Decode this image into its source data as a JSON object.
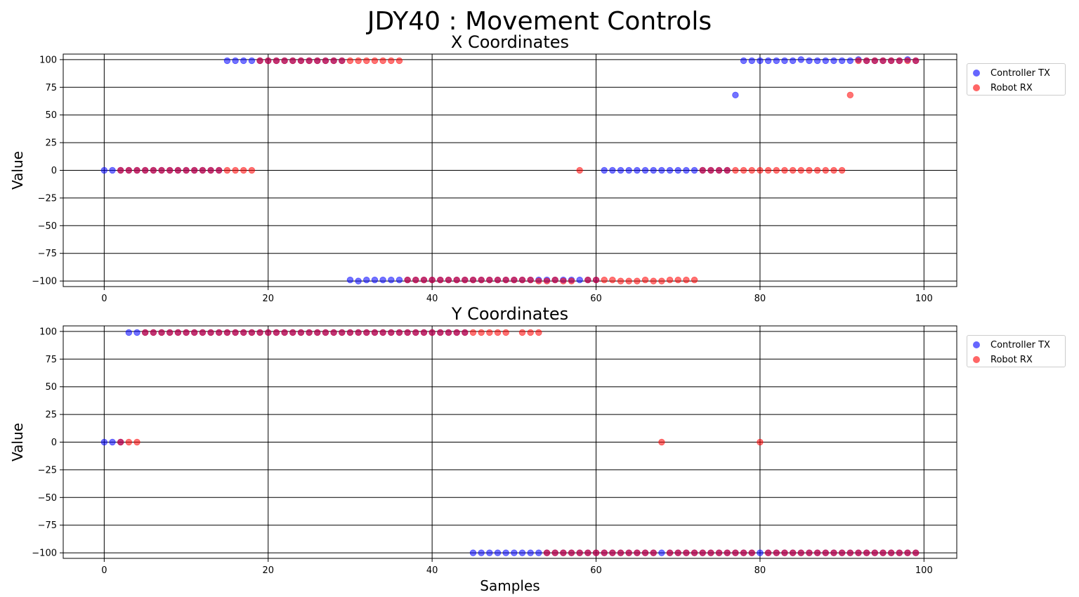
{
  "title": "JDY40 : Movement Controls",
  "colors": {
    "controller": "#0000ff",
    "robot": "#ff0000",
    "grid": "#000000"
  },
  "chart_data": [
    {
      "type": "scatter",
      "title": "X Coordinates",
      "xlabel": "",
      "ylabel": "Value",
      "xlim": [
        -5,
        104
      ],
      "ylim": [
        -105,
        105
      ],
      "xticks": [
        0,
        20,
        40,
        60,
        80,
        100
      ],
      "yticks": [
        100,
        75,
        50,
        25,
        0,
        -25,
        -50,
        -75,
        -100
      ],
      "grid": true,
      "legend": "outside-right-top",
      "series": [
        {
          "name": "Controller TX",
          "x": [
            0,
            1,
            2,
            3,
            4,
            5,
            6,
            7,
            8,
            9,
            10,
            11,
            12,
            13,
            14,
            15,
            16,
            17,
            18,
            19,
            20,
            21,
            22,
            23,
            24,
            25,
            26,
            27,
            28,
            29,
            30,
            31,
            32,
            33,
            34,
            35,
            36,
            37,
            38,
            39,
            40,
            41,
            42,
            43,
            44,
            45,
            46,
            47,
            48,
            49,
            50,
            51,
            52,
            53,
            54,
            55,
            56,
            57,
            58,
            59,
            60,
            61,
            62,
            63,
            64,
            65,
            66,
            67,
            68,
            69,
            70,
            71,
            72,
            73,
            74,
            75,
            76,
            77,
            78,
            79,
            80,
            81,
            82,
            83,
            84,
            85,
            86,
            87,
            88,
            89,
            90,
            91,
            92,
            93,
            94,
            95,
            96,
            97,
            98,
            99
          ],
          "y": [
            0,
            0,
            0,
            0,
            0,
            0,
            0,
            0,
            0,
            0,
            0,
            0,
            0,
            0,
            0,
            99,
            99,
            99,
            99,
            99,
            99,
            99,
            99,
            99,
            99,
            99,
            99,
            99,
            99,
            99,
            -99,
            -100,
            -99,
            -99,
            -99,
            -99,
            -99,
            -99,
            -99,
            -99,
            -99,
            -99,
            -99,
            -99,
            -99,
            -99,
            -99,
            -99,
            -99,
            -99,
            -99,
            -99,
            -99,
            -99,
            -99,
            -99,
            -99,
            -99,
            -99,
            -99,
            -99,
            0,
            0,
            0,
            0,
            0,
            0,
            0,
            0,
            0,
            0,
            0,
            0,
            0,
            0,
            0,
            0,
            68,
            99,
            99,
            99,
            99,
            99,
            99,
            99,
            100,
            99,
            99,
            99,
            99,
            99,
            99,
            100,
            99,
            99,
            99,
            99,
            99,
            100,
            99
          ]
        },
        {
          "name": "Robot RX",
          "x": [
            2,
            3,
            4,
            5,
            6,
            7,
            8,
            9,
            10,
            11,
            12,
            13,
            14,
            15,
            16,
            17,
            18,
            19,
            20,
            21,
            22,
            23,
            24,
            25,
            26,
            27,
            28,
            29,
            30,
            31,
            32,
            33,
            34,
            35,
            36,
            37,
            38,
            39,
            40,
            41,
            42,
            43,
            44,
            45,
            46,
            47,
            48,
            49,
            50,
            51,
            52,
            53,
            54,
            55,
            56,
            57,
            58,
            59,
            60,
            61,
            62,
            63,
            64,
            65,
            66,
            67,
            68,
            69,
            70,
            71,
            72,
            73,
            74,
            75,
            76,
            77,
            78,
            79,
            80,
            81,
            82,
            83,
            84,
            85,
            86,
            87,
            88,
            89,
            90,
            91,
            92,
            93,
            94,
            95,
            96,
            97,
            98,
            99
          ],
          "y": [
            0,
            0,
            0,
            0,
            0,
            0,
            0,
            0,
            0,
            0,
            0,
            0,
            0,
            0,
            0,
            0,
            0,
            99,
            99,
            99,
            99,
            99,
            99,
            99,
            99,
            99,
            99,
            99,
            99,
            99,
            99,
            99,
            99,
            99,
            99,
            -99,
            -99,
            -99,
            -99,
            -99,
            -99,
            -99,
            -99,
            -99,
            -99,
            -99,
            -99,
            -99,
            -99,
            -99,
            -99,
            -100,
            -100,
            -99,
            -100,
            -100,
            0,
            -99,
            -99,
            -99,
            -99,
            -100,
            -100,
            -100,
            -99,
            -100,
            -100,
            -99,
            -99,
            -99,
            -99,
            0,
            0,
            0,
            0,
            0,
            0,
            0,
            0,
            0,
            0,
            0,
            0,
            0,
            0,
            0,
            0,
            0,
            0,
            68,
            99,
            99,
            99,
            99,
            99,
            99,
            99,
            99
          ]
        }
      ]
    },
    {
      "type": "scatter",
      "title": "Y Coordinates",
      "xlabel": "Samples",
      "ylabel": "Value",
      "xlim": [
        -5,
        104
      ],
      "ylim": [
        -105,
        105
      ],
      "xticks": [
        0,
        20,
        40,
        60,
        80,
        100
      ],
      "yticks": [
        100,
        75,
        50,
        25,
        0,
        -25,
        -50,
        -75,
        -100
      ],
      "grid": true,
      "legend": "outside-right-top",
      "series": [
        {
          "name": "Controller TX",
          "x": [
            0,
            1,
            2,
            3,
            4,
            5,
            6,
            7,
            8,
            9,
            10,
            11,
            12,
            13,
            14,
            15,
            16,
            17,
            18,
            19,
            20,
            21,
            22,
            23,
            24,
            25,
            26,
            27,
            28,
            29,
            30,
            31,
            32,
            33,
            34,
            35,
            36,
            37,
            38,
            39,
            40,
            41,
            42,
            43,
            44,
            45,
            46,
            47,
            48,
            49,
            50,
            51,
            52,
            53,
            54,
            55,
            56,
            57,
            58,
            59,
            60,
            61,
            62,
            63,
            64,
            65,
            66,
            67,
            68,
            69,
            70,
            71,
            72,
            73,
            74,
            75,
            76,
            77,
            78,
            79,
            80,
            81,
            82,
            83,
            84,
            85,
            86,
            87,
            88,
            89,
            90,
            91,
            92,
            93,
            94,
            95,
            96,
            97,
            98,
            99
          ],
          "y": [
            0,
            0,
            0,
            99,
            99,
            99,
            99,
            99,
            99,
            99,
            99,
            99,
            99,
            99,
            99,
            99,
            99,
            99,
            99,
            99,
            99,
            99,
            99,
            99,
            99,
            99,
            99,
            99,
            99,
            99,
            99,
            99,
            99,
            99,
            99,
            99,
            99,
            99,
            99,
            99,
            99,
            99,
            99,
            99,
            99,
            -100,
            -100,
            -100,
            -100,
            -100,
            -100,
            -100,
            -100,
            -100,
            -100,
            -100,
            -100,
            -100,
            -100,
            -100,
            -100,
            -100,
            -100,
            -100,
            -100,
            -100,
            -100,
            -100,
            -100,
            -100,
            -100,
            -100,
            -100,
            -100,
            -100,
            -100,
            -100,
            -100,
            -100,
            -100,
            -100,
            -100,
            -100,
            -100,
            -100,
            -100,
            -100,
            -100,
            -100,
            -100,
            -100,
            -100,
            -100,
            -100,
            -100,
            -100,
            -100,
            -100,
            -100,
            -100
          ]
        },
        {
          "name": "Robot RX",
          "x": [
            2,
            3,
            4,
            5,
            6,
            7,
            8,
            9,
            10,
            11,
            12,
            13,
            14,
            15,
            16,
            17,
            18,
            19,
            20,
            21,
            22,
            23,
            24,
            25,
            26,
            27,
            28,
            29,
            30,
            31,
            32,
            33,
            34,
            35,
            36,
            37,
            38,
            39,
            40,
            41,
            42,
            43,
            44,
            45,
            46,
            47,
            48,
            49,
            51,
            52,
            53,
            54,
            55,
            56,
            57,
            58,
            59,
            60,
            61,
            62,
            63,
            64,
            65,
            66,
            67,
            68,
            69,
            70,
            71,
            72,
            73,
            74,
            75,
            76,
            77,
            78,
            79,
            80,
            81,
            82,
            83,
            84,
            85,
            86,
            87,
            88,
            89,
            90,
            91,
            92,
            93,
            94,
            95,
            96,
            97,
            98,
            99
          ],
          "y": [
            0,
            0,
            0,
            99,
            99,
            99,
            99,
            99,
            99,
            99,
            99,
            99,
            99,
            99,
            99,
            99,
            99,
            99,
            99,
            99,
            99,
            99,
            99,
            99,
            99,
            99,
            99,
            99,
            99,
            99,
            99,
            99,
            99,
            99,
            99,
            99,
            99,
            99,
            99,
            99,
            99,
            99,
            99,
            99,
            99,
            99,
            99,
            99,
            99,
            99,
            99,
            -100,
            -100,
            -100,
            -100,
            -100,
            -100,
            -100,
            -100,
            -100,
            -100,
            -100,
            -100,
            -100,
            -100,
            0,
            -100,
            -100,
            -100,
            -100,
            -100,
            -100,
            -100,
            -100,
            -100,
            -100,
            -100,
            0,
            -100,
            -100,
            -100,
            -100,
            -100,
            -100,
            -100,
            -100,
            -100,
            -100,
            -100,
            -100,
            -100,
            -100,
            -100,
            -100,
            -100,
            -100,
            -100
          ]
        }
      ]
    }
  ]
}
